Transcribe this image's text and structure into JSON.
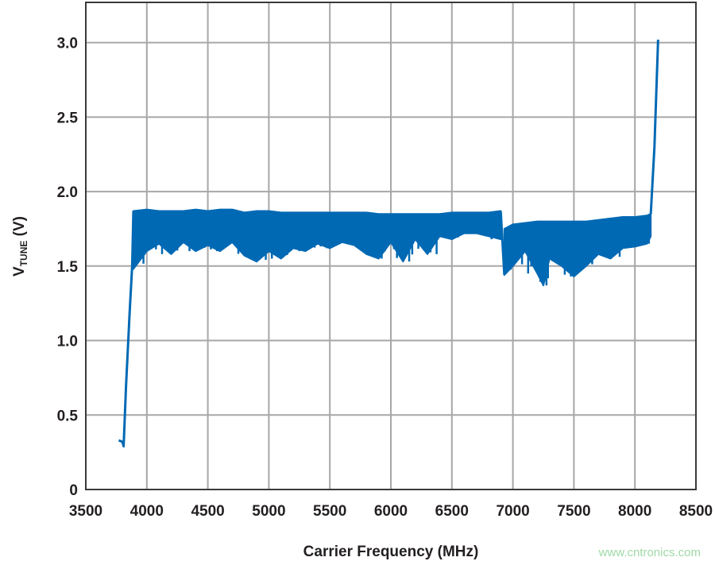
{
  "chart_data": {
    "type": "line",
    "title": "",
    "xlabel": "Carrier Frequency (MHz)",
    "ylabel_main": "V",
    "ylabel_sub": "TUNE",
    "ylabel_unit": " (V)",
    "xlim": [
      3500,
      8500
    ],
    "ylim": [
      0,
      3.27
    ],
    "xticks": [
      3500,
      4000,
      4500,
      5000,
      5500,
      6000,
      6500,
      7000,
      7500,
      8000,
      8500
    ],
    "yticks": [
      0,
      0.5,
      1.0,
      1.5,
      2.0,
      2.5,
      3.0
    ],
    "ytick_labels": [
      "0",
      "0.5",
      "1.0",
      "1.5",
      "2.0",
      "2.5",
      "3.0"
    ],
    "grid": true,
    "color": "#0069b4",
    "left_trace": [
      [
        3770,
        0.33
      ],
      [
        3800,
        0.32
      ],
      [
        3810,
        0.29
      ],
      [
        3830,
        0.7
      ],
      [
        3860,
        1.2
      ],
      [
        3880,
        1.5
      ],
      [
        3890,
        1.87
      ]
    ],
    "band1": {
      "x": [
        3890,
        4000,
        4100,
        4200,
        4300,
        4400,
        4500,
        4600,
        4700,
        4800,
        4900,
        5000,
        5100,
        5200,
        5300,
        5400,
        5500,
        5600,
        5700,
        5800,
        5900,
        6000,
        6100,
        6200,
        6300,
        6400,
        6500,
        6600,
        6700,
        6800,
        6900
      ],
      "upper": [
        1.87,
        1.88,
        1.87,
        1.87,
        1.87,
        1.88,
        1.87,
        1.88,
        1.88,
        1.86,
        1.87,
        1.87,
        1.86,
        1.86,
        1.86,
        1.86,
        1.86,
        1.86,
        1.86,
        1.86,
        1.85,
        1.85,
        1.85,
        1.85,
        1.85,
        1.85,
        1.86,
        1.86,
        1.86,
        1.86,
        1.87
      ],
      "lower": [
        1.48,
        1.6,
        1.65,
        1.58,
        1.66,
        1.6,
        1.64,
        1.6,
        1.66,
        1.57,
        1.53,
        1.6,
        1.55,
        1.62,
        1.6,
        1.65,
        1.62,
        1.66,
        1.64,
        1.58,
        1.55,
        1.66,
        1.53,
        1.68,
        1.58,
        1.7,
        1.68,
        1.72,
        1.72,
        1.7,
        1.68
      ]
    },
    "band2": {
      "x": [
        6930,
        7000,
        7100,
        7200,
        7250,
        7300,
        7400,
        7500,
        7600,
        7700,
        7800,
        7900,
        8000,
        8100,
        8130
      ],
      "upper": [
        1.75,
        1.78,
        1.79,
        1.8,
        1.8,
        1.8,
        1.8,
        1.8,
        1.8,
        1.81,
        1.82,
        1.83,
        1.83,
        1.84,
        1.85
      ],
      "lower": [
        1.44,
        1.5,
        1.6,
        1.45,
        1.37,
        1.55,
        1.5,
        1.43,
        1.5,
        1.58,
        1.55,
        1.62,
        1.63,
        1.65,
        1.7
      ]
    },
    "right_trace": [
      [
        8130,
        1.85
      ],
      [
        8160,
        2.3
      ],
      [
        8190,
        3.02
      ]
    ]
  },
  "watermark": "www.cntronics.com"
}
